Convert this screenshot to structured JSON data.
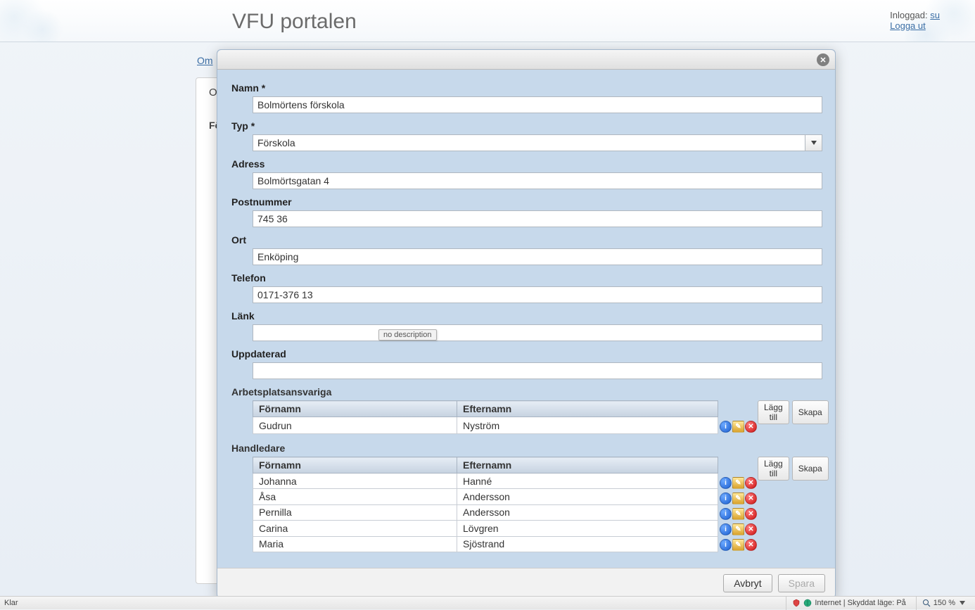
{
  "header": {
    "title": "VFU portalen",
    "logged_in_label": "Inloggad:",
    "username": "su",
    "logout": "Logga ut"
  },
  "background": {
    "tab": "Om",
    "panel_heading1": "O",
    "panel_heading2": "Fö"
  },
  "dialog": {
    "fields": {
      "name": {
        "label": "Namn *",
        "value": "Bolmörtens förskola"
      },
      "type": {
        "label": "Typ *",
        "value": "Förskola"
      },
      "address": {
        "label": "Adress",
        "value": "Bolmörtsgatan 4"
      },
      "postal": {
        "label": "Postnummer",
        "value": "745 36"
      },
      "city": {
        "label": "Ort",
        "value": "Enköping"
      },
      "phone": {
        "label": "Telefon",
        "value": "0171-376 13"
      },
      "link": {
        "label": "Länk",
        "value": ""
      },
      "updated": {
        "label": "Uppdaterad",
        "value": ""
      }
    },
    "tooltip": "no description",
    "sections": {
      "supervisors": {
        "title": "Arbetsplatsansvariga",
        "columns": [
          "Förnamn",
          "Efternamn"
        ],
        "rows": [
          {
            "first": "Gudrun",
            "last": "Nyström"
          }
        ],
        "add": "Lägg till",
        "create": "Skapa"
      },
      "handlers": {
        "title": "Handledare",
        "columns": [
          "Förnamn",
          "Efternamn"
        ],
        "rows": [
          {
            "first": "Johanna",
            "last": "Hanné"
          },
          {
            "first": "Åsa",
            "last": "Andersson"
          },
          {
            "first": "Pernilla",
            "last": "Andersson"
          },
          {
            "first": "Carina",
            "last": "Lövgren"
          },
          {
            "first": "Maria",
            "last": "Sjöstrand"
          }
        ],
        "add": "Lägg till",
        "create": "Skapa"
      }
    },
    "footer": {
      "cancel": "Avbryt",
      "save": "Spara"
    }
  },
  "statusbar": {
    "left": "Klar",
    "security": "Internet | Skyddat läge: På",
    "zoom": "150 %"
  },
  "colors": {
    "dialog_bg": "#c7d9eb",
    "link": "#3b6ea5",
    "header_title": "#6b6b6b"
  }
}
